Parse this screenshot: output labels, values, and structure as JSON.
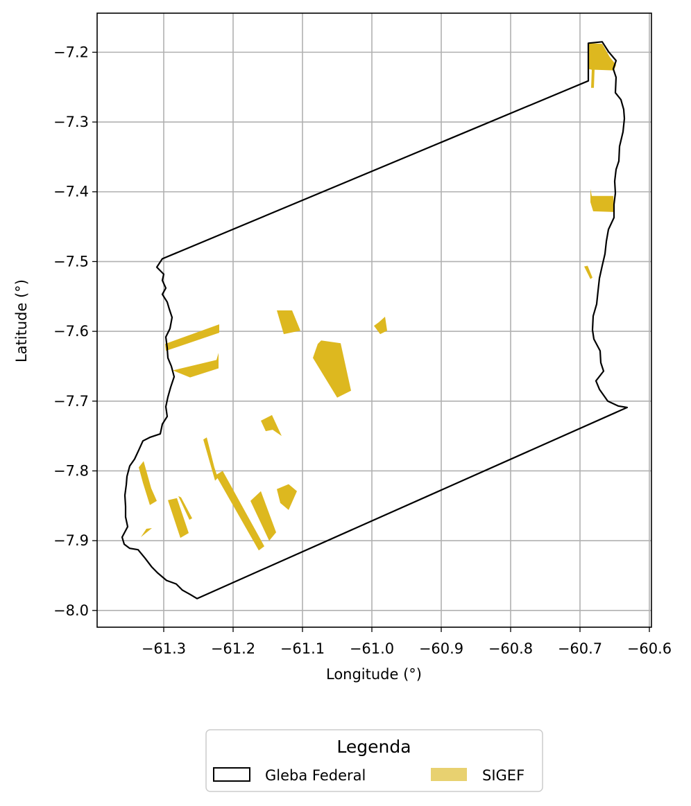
{
  "chart_data": {
    "type": "map",
    "xlabel": "Longitude (°)",
    "ylabel": "Latitude (°)",
    "xlim": [
      -61.396,
      -60.597
    ],
    "ylim": [
      -8.024,
      -7.144
    ],
    "xticks": [
      -61.3,
      -61.2,
      -61.1,
      -61.0,
      -60.9,
      -60.8,
      -60.7,
      -60.6
    ],
    "xtick_labels": [
      "−61.3",
      "−61.2",
      "−61.1",
      "−61.0",
      "−60.9",
      "−60.8",
      "−60.7",
      "−60.6"
    ],
    "yticks": [
      -7.2,
      -7.3,
      -7.4,
      -7.5,
      -7.6,
      -7.7,
      -7.8,
      -7.9,
      -8.0
    ],
    "ytick_labels": [
      "−7.2",
      "−7.3",
      "−7.4",
      "−7.5",
      "−7.6",
      "−7.7",
      "−7.8",
      "−7.9",
      "−8.0"
    ],
    "grid": true,
    "legend": {
      "title": "Legenda",
      "placement": "bottom-center",
      "entries": [
        {
          "label": "Gleba Federal",
          "style": "outline",
          "color": "#000000"
        },
        {
          "label": "SIGEF",
          "style": "fill",
          "color": "#e8d170"
        }
      ]
    },
    "colors": {
      "gleba_outline": "#000000",
      "sigef_fill": "#ddb81f",
      "legend_sigef_swatch": "#e8d170",
      "grid": "#b0b0b0"
    },
    "gleba_federal": {
      "name": "Gleba Federal",
      "boundary": [
        [
          -61.302,
          -7.496
        ],
        [
          -60.688,
          -7.241
        ],
        [
          -60.688,
          -7.187
        ],
        [
          -60.668,
          -7.185
        ],
        [
          -60.659,
          -7.199
        ],
        [
          -60.648,
          -7.212
        ],
        [
          -60.652,
          -7.224
        ],
        [
          -60.648,
          -7.236
        ],
        [
          -60.649,
          -7.258
        ],
        [
          -60.641,
          -7.268
        ],
        [
          -60.637,
          -7.282
        ],
        [
          -60.636,
          -7.295
        ],
        [
          -60.638,
          -7.314
        ],
        [
          -60.643,
          -7.335
        ],
        [
          -60.644,
          -7.356
        ],
        [
          -60.648,
          -7.368
        ],
        [
          -60.65,
          -7.385
        ],
        [
          -60.649,
          -7.402
        ],
        [
          -60.651,
          -7.418
        ],
        [
          -60.651,
          -7.437
        ],
        [
          -60.659,
          -7.454
        ],
        [
          -60.662,
          -7.471
        ],
        [
          -60.664,
          -7.489
        ],
        [
          -60.668,
          -7.506
        ],
        [
          -60.672,
          -7.524
        ],
        [
          -60.674,
          -7.542
        ],
        [
          -60.676,
          -7.561
        ],
        [
          -60.681,
          -7.578
        ],
        [
          -60.682,
          -7.598
        ],
        [
          -60.68,
          -7.611
        ],
        [
          -60.671,
          -7.628
        ],
        [
          -60.67,
          -7.645
        ],
        [
          -60.666,
          -7.657
        ],
        [
          -60.677,
          -7.671
        ],
        [
          -60.672,
          -7.683
        ],
        [
          -60.66,
          -7.7
        ],
        [
          -60.645,
          -7.707
        ],
        [
          -60.632,
          -7.709
        ],
        [
          -61.252,
          -7.983
        ],
        [
          -61.262,
          -7.977
        ],
        [
          -61.273,
          -7.971
        ],
        [
          -61.282,
          -7.962
        ],
        [
          -61.296,
          -7.957
        ],
        [
          -61.309,
          -7.946
        ],
        [
          -61.317,
          -7.938
        ],
        [
          -61.327,
          -7.925
        ],
        [
          -61.337,
          -7.913
        ],
        [
          -61.349,
          -7.911
        ],
        [
          -61.357,
          -7.905
        ],
        [
          -61.36,
          -7.895
        ],
        [
          -61.352,
          -7.88
        ],
        [
          -61.355,
          -7.866
        ],
        [
          -61.355,
          -7.851
        ],
        [
          -61.356,
          -7.835
        ],
        [
          -61.354,
          -7.82
        ],
        [
          -61.353,
          -7.808
        ],
        [
          -61.349,
          -7.793
        ],
        [
          -61.342,
          -7.783
        ],
        [
          -61.335,
          -7.768
        ],
        [
          -61.33,
          -7.757
        ],
        [
          -61.32,
          -7.752
        ],
        [
          -61.305,
          -7.747
        ],
        [
          -61.302,
          -7.733
        ],
        [
          -61.295,
          -7.722
        ],
        [
          -61.297,
          -7.708
        ],
        [
          -61.294,
          -7.694
        ],
        [
          -61.29,
          -7.68
        ],
        [
          -61.285,
          -7.665
        ],
        [
          -61.289,
          -7.65
        ],
        [
          -61.294,
          -7.638
        ],
        [
          -61.295,
          -7.624
        ],
        [
          -61.297,
          -7.608
        ],
        [
          -61.291,
          -7.596
        ],
        [
          -61.288,
          -7.58
        ],
        [
          -61.292,
          -7.568
        ],
        [
          -61.295,
          -7.558
        ],
        [
          -61.302,
          -7.547
        ],
        [
          -61.297,
          -7.538
        ],
        [
          -61.302,
          -7.527
        ],
        [
          -61.3,
          -7.518
        ],
        [
          -61.31,
          -7.508
        ],
        [
          -61.302,
          -7.496
        ]
      ]
    },
    "sigef_parcels": [
      {
        "id": 1,
        "polygon": [
          [
            -60.689,
            -7.187
          ],
          [
            -60.668,
            -7.188
          ],
          [
            -60.657,
            -7.207
          ],
          [
            -60.648,
            -7.218
          ],
          [
            -60.651,
            -7.226
          ],
          [
            -60.679,
            -7.225
          ],
          [
            -60.68,
            -7.251
          ],
          [
            -60.684,
            -7.251
          ],
          [
            -60.683,
            -7.225
          ],
          [
            -60.688,
            -7.224
          ]
        ]
      },
      {
        "id": 2,
        "polygon": [
          [
            -60.685,
            -7.396
          ],
          [
            -60.683,
            -7.406
          ],
          [
            -60.652,
            -7.406
          ],
          [
            -60.651,
            -7.429
          ],
          [
            -60.681,
            -7.428
          ],
          [
            -60.685,
            -7.415
          ]
        ]
      },
      {
        "id": 3,
        "polygon": [
          [
            -60.694,
            -7.507
          ],
          [
            -60.689,
            -7.506
          ],
          [
            -60.682,
            -7.523
          ],
          [
            -60.685,
            -7.525
          ]
        ]
      },
      {
        "id": 4,
        "polygon": [
          [
            -61.137,
            -7.57
          ],
          [
            -61.115,
            -7.57
          ],
          [
            -61.103,
            -7.599
          ],
          [
            -61.127,
            -7.604
          ]
        ]
      },
      {
        "id": 5,
        "polygon": [
          [
            -60.99,
            -7.587
          ],
          [
            -60.981,
            -7.579
          ],
          [
            -60.978,
            -7.599
          ],
          [
            -60.988,
            -7.604
          ],
          [
            -60.997,
            -7.592
          ]
        ]
      },
      {
        "id": 6,
        "polygon": [
          [
            -61.22,
            -7.59
          ],
          [
            -61.298,
            -7.618
          ],
          [
            -61.297,
            -7.628
          ],
          [
            -61.22,
            -7.602
          ]
        ]
      },
      {
        "id": 7,
        "polygon": [
          [
            -61.221,
            -7.631
          ],
          [
            -61.221,
            -7.653
          ],
          [
            -61.262,
            -7.666
          ],
          [
            -61.287,
            -7.656
          ],
          [
            -61.224,
            -7.641
          ]
        ]
      },
      {
        "id": 8,
        "polygon": [
          [
            -61.078,
            -7.618
          ],
          [
            -61.073,
            -7.613
          ],
          [
            -61.045,
            -7.617
          ],
          [
            -61.03,
            -7.685
          ],
          [
            -61.05,
            -7.695
          ],
          [
            -61.085,
            -7.638
          ]
        ]
      },
      {
        "id": 9,
        "polygon": [
          [
            -61.16,
            -7.728
          ],
          [
            -61.144,
            -7.72
          ],
          [
            -61.13,
            -7.75
          ],
          [
            -61.143,
            -7.741
          ],
          [
            -61.153,
            -7.743
          ]
        ]
      },
      {
        "id": 10,
        "polygon": [
          [
            -61.243,
            -7.755
          ],
          [
            -61.238,
            -7.752
          ],
          [
            -61.227,
            -7.795
          ],
          [
            -61.222,
            -7.81
          ],
          [
            -61.226,
            -7.814
          ]
        ]
      },
      {
        "id": 11,
        "polygon": [
          [
            -61.225,
            -7.806
          ],
          [
            -61.215,
            -7.8
          ],
          [
            -61.155,
            -7.908
          ],
          [
            -61.163,
            -7.914
          ]
        ]
      },
      {
        "id": 12,
        "polygon": [
          [
            -61.336,
            -7.795
          ],
          [
            -61.329,
            -7.786
          ],
          [
            -61.318,
            -7.825
          ],
          [
            -61.31,
            -7.843
          ],
          [
            -61.32,
            -7.849
          ],
          [
            -61.33,
            -7.817
          ]
        ]
      },
      {
        "id": 13,
        "polygon": [
          [
            -61.294,
            -7.842
          ],
          [
            -61.281,
            -7.839
          ],
          [
            -61.264,
            -7.889
          ],
          [
            -61.276,
            -7.896
          ]
        ]
      },
      {
        "id": 14,
        "polygon": [
          [
            -61.279,
            -7.836
          ],
          [
            -61.275,
            -7.838
          ],
          [
            -61.259,
            -7.868
          ],
          [
            -61.263,
            -7.87
          ]
        ]
      },
      {
        "id": 15,
        "polygon": [
          [
            -61.175,
            -7.843
          ],
          [
            -61.16,
            -7.829
          ],
          [
            -61.138,
            -7.888
          ],
          [
            -61.148,
            -7.9
          ]
        ]
      },
      {
        "id": 16,
        "polygon": [
          [
            -61.137,
            -7.826
          ],
          [
            -61.12,
            -7.819
          ],
          [
            -61.108,
            -7.829
          ],
          [
            -61.12,
            -7.856
          ],
          [
            -61.132,
            -7.846
          ]
        ]
      },
      {
        "id": 17,
        "polygon": [
          [
            -61.325,
            -7.883
          ],
          [
            -61.333,
            -7.895
          ],
          [
            -61.317,
            -7.882
          ]
        ]
      }
    ]
  }
}
